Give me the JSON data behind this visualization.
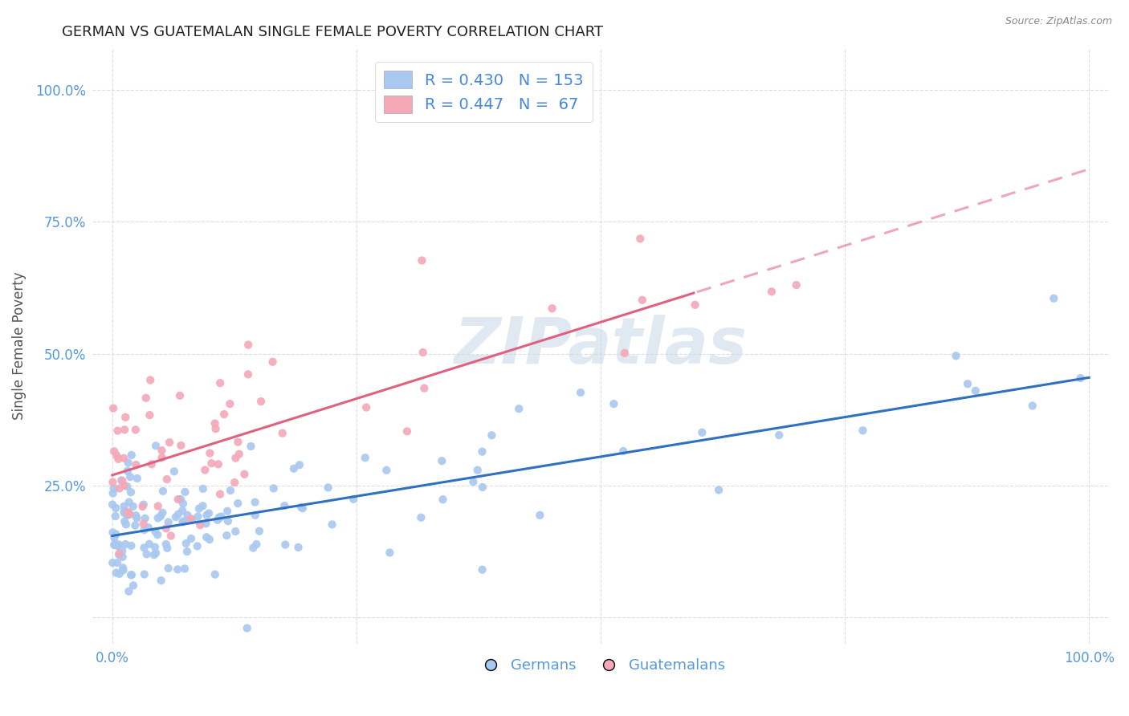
{
  "title": "GERMAN VS GUATEMALAN SINGLE FEMALE POVERTY CORRELATION CHART",
  "source": "Source: ZipAtlas.com",
  "ylabel": "Single Female Poverty",
  "watermark": "ZIPatlas",
  "german_color": "#A8C8F0",
  "guatemalan_color": "#F4A8B8",
  "german_line_color": "#3070C0",
  "guatemalan_line_color": "#E06080",
  "german_R": 0.43,
  "german_N": 153,
  "guatemalan_R": 0.447,
  "guatemalan_N": 67,
  "legend_text_color": "#4488DD",
  "german_intercept": 0.155,
  "german_slope": 0.3,
  "guatemalan_intercept": 0.27,
  "guatemalan_slope": 0.58,
  "background_color": "#FFFFFF",
  "grid_color": "#DDDDDD",
  "axis_tick_color": "#5599DD",
  "title_color": "#222222",
  "ylabel_color": "#555555",
  "watermark_color": "#C8D8E8",
  "xlim": [
    -0.02,
    1.02
  ],
  "ylim": [
    -0.05,
    1.08
  ]
}
